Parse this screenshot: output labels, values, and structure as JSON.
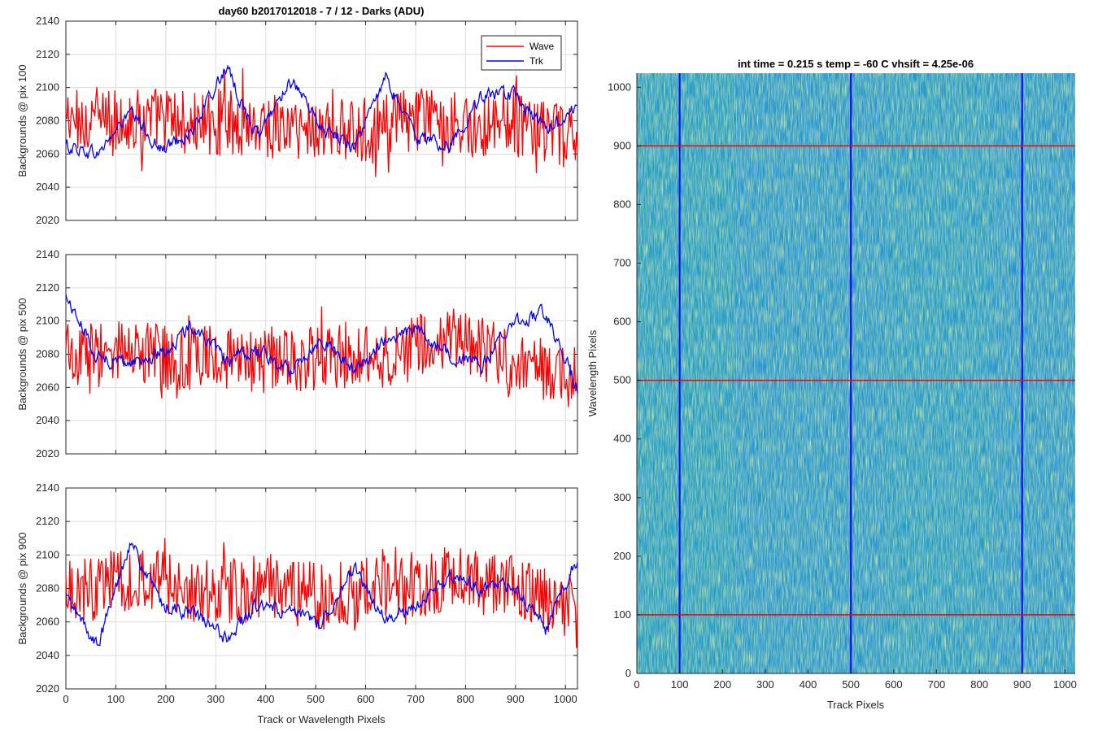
{
  "chart_data": [
    {
      "type": "line",
      "title": "day60 b2017012018 - 7 / 12 - Darks (ADU)",
      "xlabel": "",
      "ylabel": "Backgrounds @ pix 100",
      "xlim": [
        0,
        1024
      ],
      "ylim": [
        2020,
        2140
      ],
      "xticks": [
        0,
        100,
        200,
        300,
        400,
        500,
        600,
        700,
        800,
        900,
        1000
      ],
      "yticks": [
        2020,
        2040,
        2060,
        2080,
        2100,
        2120,
        2140
      ],
      "grid": true,
      "legend": {
        "position": "top-right",
        "entries": [
          "Wave",
          "Trk"
        ]
      },
      "series": [
        {
          "name": "Wave",
          "color": "#ff0000",
          "x": [
            0,
            64,
            128,
            192,
            256,
            320,
            384,
            448,
            512,
            576,
            640,
            704,
            768,
            832,
            896,
            960,
            1024
          ],
          "values": [
            2080,
            2081,
            2079,
            2082,
            2077,
            2080,
            2078,
            2075,
            2076,
            2072,
            2078,
            2081,
            2079,
            2077,
            2080,
            2072,
            2068
          ]
        },
        {
          "name": "Trk",
          "color": "#0000ff",
          "x": [
            0,
            64,
            128,
            192,
            256,
            320,
            384,
            448,
            512,
            576,
            640,
            704,
            768,
            832,
            896,
            960,
            1024
          ],
          "values": [
            2065,
            2060,
            2085,
            2062,
            2075,
            2112,
            2070,
            2105,
            2075,
            2065,
            2105,
            2070,
            2065,
            2095,
            2095,
            2075,
            2088
          ]
        }
      ]
    },
    {
      "type": "line",
      "title": "",
      "xlabel": "",
      "ylabel": "Backgrounds @ pix 500",
      "xlim": [
        0,
        1024
      ],
      "ylim": [
        2020,
        2140
      ],
      "xticks": [
        0,
        100,
        200,
        300,
        400,
        500,
        600,
        700,
        800,
        900,
        1000
      ],
      "yticks": [
        2020,
        2040,
        2060,
        2080,
        2100,
        2120,
        2140
      ],
      "grid": true,
      "series": [
        {
          "name": "Wave",
          "color": "#ff0000",
          "x": [
            0,
            64,
            128,
            192,
            256,
            320,
            384,
            448,
            512,
            576,
            640,
            704,
            768,
            832,
            896,
            960,
            1024
          ],
          "values": [
            2078,
            2080,
            2082,
            2079,
            2077,
            2078,
            2075,
            2076,
            2078,
            2080,
            2077,
            2085,
            2088,
            2084,
            2072,
            2068,
            2065
          ]
        },
        {
          "name": "Trk",
          "color": "#0000ff",
          "x": [
            0,
            64,
            128,
            192,
            256,
            320,
            384,
            448,
            512,
            576,
            640,
            704,
            768,
            832,
            896,
            960,
            1024
          ],
          "values": [
            2115,
            2078,
            2075,
            2080,
            2098,
            2075,
            2082,
            2070,
            2090,
            2070,
            2088,
            2095,
            2080,
            2072,
            2100,
            2105,
            2060
          ]
        }
      ]
    },
    {
      "type": "line",
      "title": "",
      "xlabel": "Track or Wavelength Pixels",
      "ylabel": "Backgrounds @ pix 900",
      "xlim": [
        0,
        1024
      ],
      "ylim": [
        2020,
        2140
      ],
      "xticks": [
        0,
        100,
        200,
        300,
        400,
        500,
        600,
        700,
        800,
        900,
        1000
      ],
      "yticks": [
        2020,
        2040,
        2060,
        2080,
        2100,
        2120,
        2140
      ],
      "grid": true,
      "series": [
        {
          "name": "Wave",
          "color": "#ff0000",
          "x": [
            0,
            64,
            128,
            192,
            256,
            320,
            384,
            448,
            512,
            576,
            640,
            704,
            768,
            832,
            896,
            960,
            1024
          ],
          "values": [
            2082,
            2080,
            2085,
            2082,
            2079,
            2078,
            2080,
            2082,
            2075,
            2078,
            2080,
            2082,
            2085,
            2084,
            2080,
            2072,
            2068
          ]
        },
        {
          "name": "Trk",
          "color": "#0000ff",
          "x": [
            0,
            64,
            128,
            192,
            256,
            320,
            384,
            448,
            512,
            576,
            640,
            704,
            768,
            832,
            896,
            960,
            1024
          ],
          "values": [
            2075,
            2045,
            2108,
            2070,
            2065,
            2050,
            2070,
            2065,
            2060,
            2092,
            2060,
            2070,
            2088,
            2080,
            2082,
            2055,
            2098
          ]
        }
      ]
    },
    {
      "type": "heatmap",
      "title": "int time = 0.215 s   temp = -60 C   vhsift = 4.25e-06",
      "xlabel": "Track Pixels",
      "ylabel": "Wavelength Pixels",
      "xlim": [
        0,
        1024
      ],
      "ylim": [
        0,
        1024
      ],
      "xticks": [
        0,
        100,
        200,
        300,
        400,
        500,
        600,
        700,
        800,
        900,
        1000
      ],
      "yticks": [
        0,
        100,
        200,
        300,
        400,
        500,
        600,
        700,
        800,
        900,
        1000
      ],
      "grid": false,
      "colormap": "parula",
      "colors": {
        "low": "#2a7fd4",
        "mid": "#1fa8b8",
        "high": "#a8c84a"
      },
      "vertical_lines": {
        "x": [
          100,
          500,
          900
        ],
        "color": "#0000ff"
      },
      "horizontal_lines": {
        "y": [
          100,
          500,
          900
        ],
        "color": "#ff0000"
      }
    }
  ]
}
